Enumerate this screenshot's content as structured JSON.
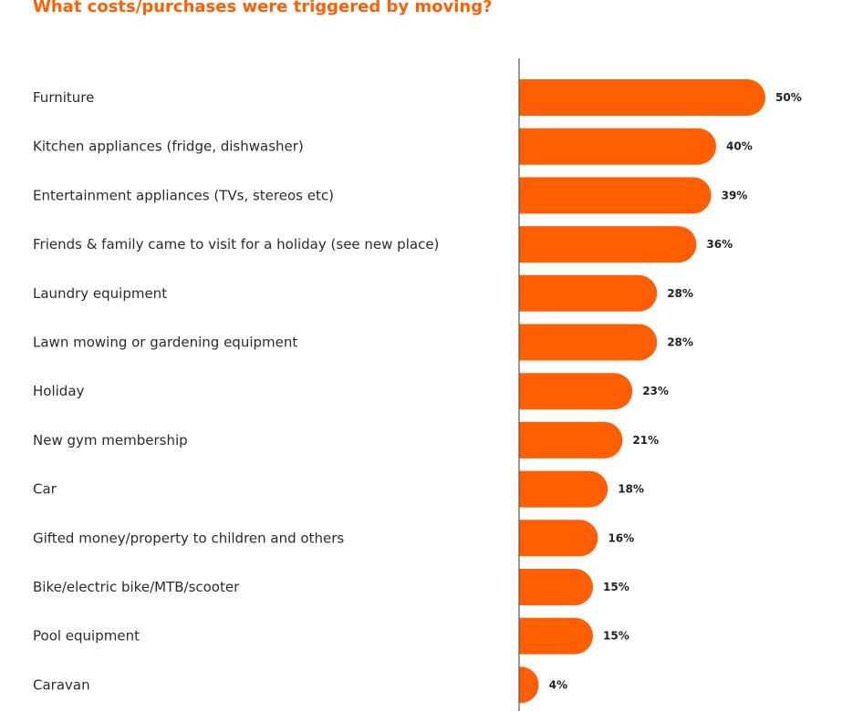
{
  "colors": {
    "accent": "#ff5f00",
    "axis": "#555555"
  },
  "chart_data": {
    "type": "bar",
    "orientation": "horizontal",
    "title": "What costs/purchases were triggered by moving?",
    "categories": [
      "Furniture",
      "Kitchen appliances (fridge, dishwasher)",
      "Entertainment appliances (TVs, stereos etc)",
      "Friends & family came to visit for a holiday (see new place)",
      "Laundry equipment",
      "Lawn mowing or gardening equipment",
      "Holiday",
      "New gym membership",
      "Car",
      "Gifted money/property to children and others",
      "Bike/electric bike/MTB/scooter",
      "Pool equipment",
      "Caravan"
    ],
    "values": [
      50,
      40,
      39,
      36,
      28,
      28,
      23,
      21,
      18,
      16,
      15,
      15,
      4
    ],
    "value_labels": [
      "50%",
      "40%",
      "39%",
      "36%",
      "28%",
      "28%",
      "23%",
      "21%",
      "18%",
      "16%",
      "15%",
      "15%",
      "4%"
    ],
    "unit": "%",
    "xlabel": "",
    "ylabel": ""
  }
}
